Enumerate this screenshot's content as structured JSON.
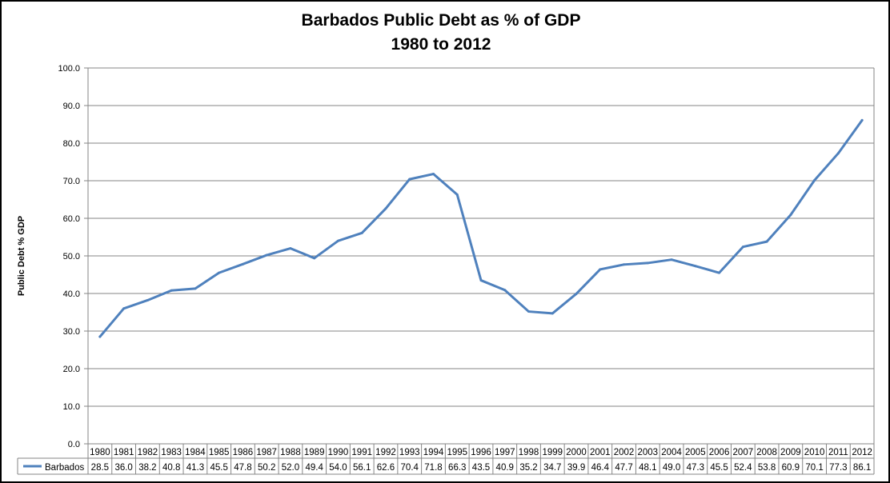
{
  "chart_data": {
    "type": "line",
    "title_line1": "Barbados Public Debt as % of GDP",
    "title_line2": "1980 to 2012",
    "ylabel": "Public Debt % GDP",
    "ylim": [
      0,
      100
    ],
    "y_ticks": [
      "0.0",
      "10.0",
      "20.0",
      "30.0",
      "40.0",
      "50.0",
      "60.0",
      "70.0",
      "80.0",
      "90.0",
      "100.0"
    ],
    "grid": true,
    "legend_placement": "data-table",
    "categories": [
      "1980",
      "1981",
      "1982",
      "1983",
      "1984",
      "1985",
      "1986",
      "1987",
      "1988",
      "1989",
      "1990",
      "1991",
      "1992",
      "1993",
      "1994",
      "1995",
      "1996",
      "1997",
      "1998",
      "1999",
      "2000",
      "2001",
      "2002",
      "2003",
      "2004",
      "2005",
      "2006",
      "2007",
      "2008",
      "2009",
      "2010",
      "2011",
      "2012"
    ],
    "series": [
      {
        "name": "Barbados",
        "color": "#4f81bd",
        "values": [
          28.5,
          36.0,
          38.2,
          40.8,
          41.3,
          45.5,
          47.8,
          50.2,
          52.0,
          49.4,
          54.0,
          56.1,
          62.6,
          70.4,
          71.8,
          66.3,
          43.5,
          40.9,
          35.2,
          34.7,
          39.9,
          46.4,
          47.7,
          48.1,
          49.0,
          47.3,
          45.5,
          52.4,
          53.8,
          60.9,
          70.1,
          77.3,
          86.1
        ],
        "labels": [
          "28.5",
          "36.0",
          "38.2",
          "40.8",
          "41.3",
          "45.5",
          "47.8",
          "50.2",
          "52.0",
          "49.4",
          "54.0",
          "56.1",
          "62.6",
          "70.4",
          "71.8",
          "66.3",
          "43.5",
          "40.9",
          "35.2",
          "34.7",
          "39.9",
          "46.4",
          "47.7",
          "48.1",
          "49.0",
          "47.3",
          "45.5",
          "52.4",
          "53.8",
          "60.9",
          "70.1",
          "77.3",
          "86.1"
        ]
      }
    ]
  }
}
